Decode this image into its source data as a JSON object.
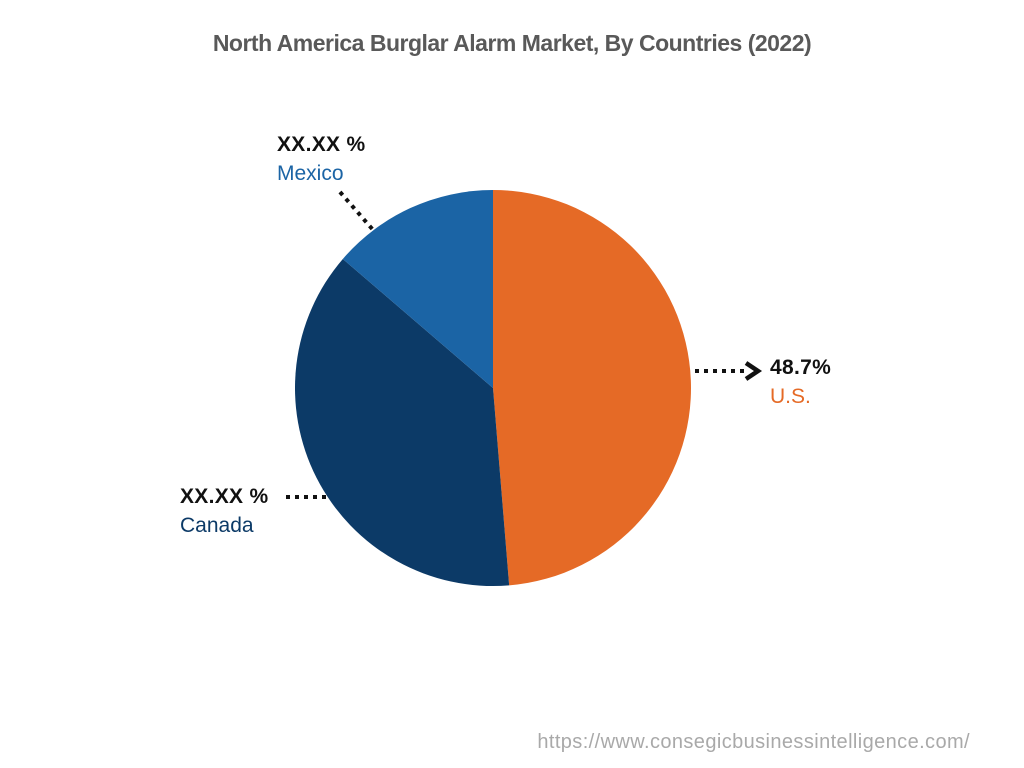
{
  "page": {
    "title": "North America Burglar Alarm Market, By Countries (2022)",
    "footer_url": "https://www.consegicbusinessintelligence.com/",
    "background_color": "#ffffff",
    "title_color": "#595959",
    "footer_color": "#a9a9a9",
    "leader_line_color": "#111111"
  },
  "chart_data": {
    "type": "pie",
    "title": "North America Burglar Alarm Market, By Countries (2022)",
    "direction": "clockwise",
    "start_angle_deg": 0,
    "legend_position": "none",
    "slices": [
      {
        "label": "U.S.",
        "display_value": "48.7%",
        "value_pct": 48.7,
        "value_estimated": false,
        "color": "#e56a26"
      },
      {
        "label": "Canada",
        "display_value": "XX.XX %",
        "value_pct": 37.6,
        "value_estimated": true,
        "color": "#0c3a67"
      },
      {
        "label": "Mexico",
        "display_value": "XX.XX %",
        "value_pct": 13.7,
        "value_estimated": true,
        "color": "#1b64a5"
      }
    ]
  }
}
